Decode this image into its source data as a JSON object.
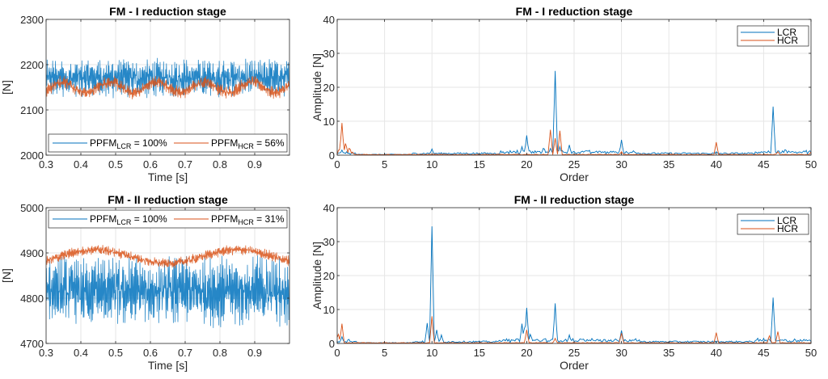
{
  "colors": {
    "lcr": "#0072BD",
    "hcr": "#D95319",
    "grid": "#e6e6e6",
    "axis": "#262626"
  },
  "chart_data": [
    {
      "type": "line",
      "id": "time1",
      "title": "FM - I reduction stage",
      "xlabel": "Time [s]",
      "ylabel": "[N]",
      "xlim": [
        0.3,
        1.0
      ],
      "ylim": [
        2000,
        2300
      ],
      "xticks": [
        "0.3",
        "0.4",
        "0.5",
        "0.6",
        "0.7",
        "0.8",
        "0.9"
      ],
      "xtick_values": [
        0.3,
        0.4,
        0.5,
        0.6,
        0.7,
        0.8,
        0.9
      ],
      "yticks": [
        "2000",
        "2100",
        "2200",
        "2300"
      ],
      "ytick_values": [
        2000,
        2100,
        2200,
        2300
      ],
      "grid": true,
      "legend_position": "bottom",
      "series": [
        {
          "name": "LCR",
          "legend_main": "PPFM",
          "legend_sub": "LCR",
          "legend_tail": " = 100%",
          "mean": 2170,
          "amplitude": 45,
          "mod_period": 0.136,
          "mod_amp": 0
        },
        {
          "name": "HCR",
          "legend_main": "PPFM",
          "legend_sub": "HCR",
          "legend_tail": " = 56%",
          "mean": 2150,
          "amplitude": 15,
          "mod_period": 0.136,
          "mod_amp": 12
        }
      ]
    },
    {
      "type": "line",
      "id": "spec1",
      "title": "FM - I reduction stage",
      "xlabel": "Order",
      "ylabel": "Amplitude [N]",
      "xlim": [
        0,
        50
      ],
      "ylim": [
        0,
        40
      ],
      "xticks": [
        "0",
        "5",
        "10",
        "15",
        "20",
        "25",
        "30",
        "35",
        "40",
        "45",
        "50"
      ],
      "xtick_values": [
        0,
        5,
        10,
        15,
        20,
        25,
        30,
        35,
        40,
        45,
        50
      ],
      "yticks": [
        "0",
        "10",
        "20",
        "30",
        "40"
      ],
      "ytick_values": [
        0,
        10,
        20,
        30,
        40
      ],
      "grid": true,
      "legend_position": "top-right",
      "series": [
        {
          "name": "LCR",
          "peaks": [
            [
              0.5,
              1.5
            ],
            [
              1,
              1
            ],
            [
              10,
              1.8
            ],
            [
              19.5,
              2.5
            ],
            [
              20,
              5.8
            ],
            [
              21.8,
              2.5
            ],
            [
              22.5,
              2
            ],
            [
              23,
              24.8
            ],
            [
              23.5,
              2.5
            ],
            [
              24.5,
              3
            ],
            [
              30,
              4.5
            ],
            [
              40,
              1
            ],
            [
              45,
              1
            ],
            [
              46,
              14.3
            ],
            [
              47.3,
              2
            ],
            [
              50,
              1
            ]
          ]
        },
        {
          "name": "HCR",
          "peaks": [
            [
              0.2,
              2
            ],
            [
              0.5,
              9.5
            ],
            [
              0.9,
              3.8
            ],
            [
              1.3,
              2.5
            ],
            [
              1.6,
              1
            ],
            [
              22.5,
              7.5
            ],
            [
              23,
              5
            ],
            [
              23.5,
              7.2
            ],
            [
              30,
              1
            ],
            [
              40,
              3.8
            ],
            [
              46.5,
              1
            ],
            [
              50,
              1
            ]
          ]
        }
      ]
    },
    {
      "type": "line",
      "id": "time2",
      "title": "FM - II reduction stage",
      "xlabel": "Time [s]",
      "ylabel": "[N]",
      "xlim": [
        0.3,
        1.0
      ],
      "ylim": [
        4700,
        5000
      ],
      "xticks": [
        "0.3",
        "0.4",
        "0.5",
        "0.6",
        "0.7",
        "0.8",
        "0.9"
      ],
      "xtick_values": [
        0.3,
        0.4,
        0.5,
        0.6,
        0.7,
        0.8,
        0.9
      ],
      "yticks": [
        "4700",
        "4800",
        "4900",
        "5000"
      ],
      "ytick_values": [
        4700,
        4800,
        4900,
        5000
      ],
      "grid": true,
      "legend_position": "top",
      "series": [
        {
          "name": "LCR",
          "legend_main": "PPFM",
          "legend_sub": "LCR",
          "legend_tail": " = 100%",
          "mean": 4815,
          "amplitude": 80,
          "mod_period": 0.4,
          "mod_amp": 0
        },
        {
          "name": "HCR",
          "legend_main": "PPFM",
          "legend_sub": "HCR",
          "legend_tail": " = 31%",
          "mean": 4892,
          "amplitude": 12,
          "mod_period": 0.41,
          "mod_amp": 15
        }
      ]
    },
    {
      "type": "line",
      "id": "spec2",
      "title": "FM - II reduction stage",
      "xlabel": "Order",
      "ylabel": "Amplitude [N]",
      "xlim": [
        0,
        50
      ],
      "ylim": [
        0,
        40
      ],
      "xticks": [
        "0",
        "5",
        "10",
        "15",
        "20",
        "25",
        "30",
        "35",
        "40",
        "45",
        "50"
      ],
      "xtick_values": [
        0,
        5,
        10,
        15,
        20,
        25,
        30,
        35,
        40,
        45,
        50
      ],
      "yticks": [
        "0",
        "10",
        "20",
        "30",
        "40"
      ],
      "ytick_values": [
        0,
        10,
        20,
        30,
        40
      ],
      "grid": true,
      "legend_position": "top-right",
      "series": [
        {
          "name": "LCR",
          "peaks": [
            [
              0.5,
              2
            ],
            [
              1.2,
              1.5
            ],
            [
              9.5,
              6
            ],
            [
              10,
              34.5
            ],
            [
              10.5,
              4
            ],
            [
              11,
              2.5
            ],
            [
              19.5,
              5.8
            ],
            [
              19.8,
              5.5
            ],
            [
              20,
              10.5
            ],
            [
              20.4,
              3
            ],
            [
              23,
              11.8
            ],
            [
              24.5,
              2.5
            ],
            [
              30,
              3.8
            ],
            [
              45,
              1.5
            ],
            [
              46,
              13.5
            ],
            [
              47.3,
              1.5
            ]
          ]
        },
        {
          "name": "HCR",
          "peaks": [
            [
              0.1,
              3
            ],
            [
              0.5,
              5.8
            ],
            [
              10,
              8
            ],
            [
              20,
              4
            ],
            [
              23,
              1.5
            ],
            [
              30,
              3
            ],
            [
              40,
              3.2
            ],
            [
              45.6,
              2.5
            ],
            [
              46.5,
              3.5
            ]
          ]
        }
      ]
    }
  ]
}
